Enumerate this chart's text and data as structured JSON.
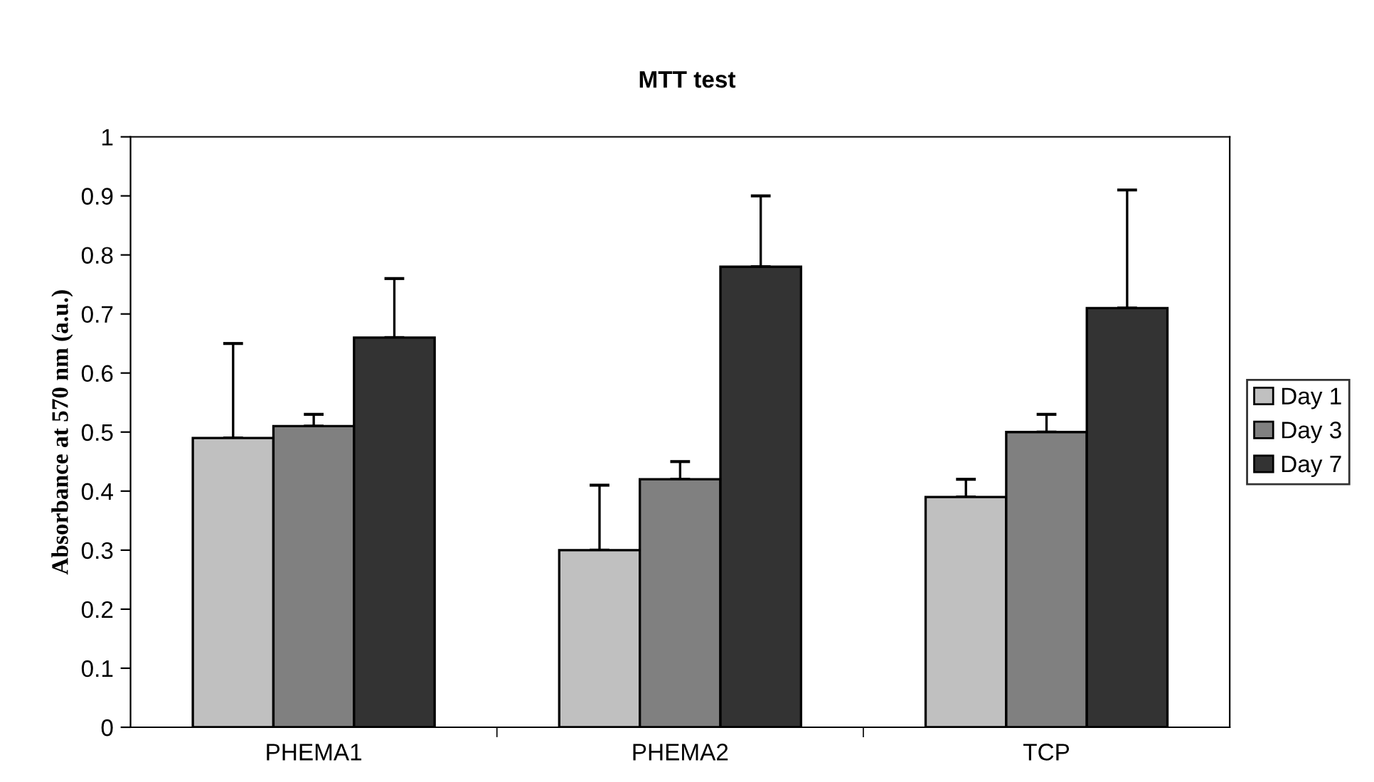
{
  "chart_data": {
    "type": "bar",
    "title": "MTT test",
    "ylabel": "Absorbance at 570 nm (a.u.)",
    "categories": [
      "PHEMA1",
      "PHEMA2",
      "TCP"
    ],
    "series": [
      {
        "name": "Day 1",
        "color": "#c0c0c0",
        "values": [
          0.49,
          0.3,
          0.39
        ],
        "errors": [
          [
            0.49,
            0.65
          ],
          [
            0.3,
            0.41
          ],
          [
            0.39,
            0.42
          ]
        ]
      },
      {
        "name": "Day 3",
        "color": "#808080",
        "values": [
          0.51,
          0.42,
          0.5
        ],
        "errors": [
          [
            0.51,
            0.53
          ],
          [
            0.42,
            0.45
          ],
          [
            0.5,
            0.53
          ]
        ]
      },
      {
        "name": "Day 7",
        "color": "#333333",
        "values": [
          0.66,
          0.78,
          0.71
        ],
        "errors": [
          [
            0.66,
            0.76
          ],
          [
            0.78,
            0.9
          ],
          [
            0.71,
            0.91
          ]
        ]
      }
    ],
    "ylim": [
      0,
      1
    ],
    "yticks": [
      0,
      0.1,
      0.2,
      0.3,
      0.4,
      0.5,
      0.6,
      0.7,
      0.8,
      0.9,
      1
    ],
    "grid": false,
    "legend": "right"
  }
}
